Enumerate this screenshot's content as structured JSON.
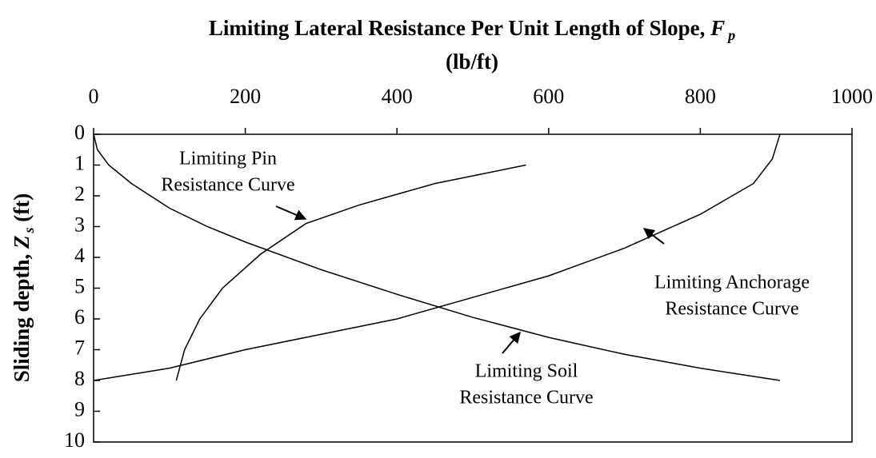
{
  "chart_data": {
    "type": "line",
    "title": {
      "text": "Limiting Lateral Resistance Per Unit Length of Slope, ",
      "symbol": "F",
      "subscript": "p"
    },
    "x_unit": "(lb/ft)",
    "y_label": {
      "text": "Sliding depth, ",
      "symbol": "Z",
      "subscript": "s",
      "unit": " (ft)"
    },
    "xlim": [
      0,
      1000
    ],
    "xticks": [
      0,
      200,
      400,
      600,
      800,
      1000
    ],
    "ylim": [
      10,
      0
    ],
    "yticks": [
      0,
      1,
      2,
      3,
      4,
      5,
      6,
      7,
      8,
      9,
      10
    ],
    "color": "#000000",
    "series": [
      {
        "x": [
          0,
          5,
          20,
          50,
          100,
          150,
          200,
          300,
          400,
          500,
          600,
          700,
          800,
          905
        ],
        "values": [
          0,
          0.5,
          1.0,
          1.6,
          2.4,
          3.0,
          3.5,
          4.4,
          5.2,
          5.95,
          6.6,
          7.15,
          7.6,
          8.0
        ]
      },
      {
        "x": [
          109,
          120,
          140,
          170,
          220,
          280,
          350,
          450,
          570
        ],
        "values": [
          8,
          7,
          6,
          5,
          3.9,
          2.9,
          2.3,
          1.6,
          1.0
        ]
      },
      {
        "x": [
          0,
          100,
          200,
          300,
          400,
          500,
          600,
          700,
          800,
          870,
          895,
          905
        ],
        "values": [
          8,
          7.6,
          7.0,
          6.5,
          6.0,
          5.3,
          4.6,
          3.7,
          2.6,
          1.6,
          0.8,
          0
        ]
      }
    ],
    "annotations": [
      {
        "lines": [
          "Limiting Pin",
          "Resistance Curve"
        ]
      },
      {
        "lines": [
          "Limiting Anchorage",
          "Resistance Curve"
        ]
      },
      {
        "lines": [
          "Limiting Soil",
          "Resistance Curve"
        ]
      }
    ]
  }
}
